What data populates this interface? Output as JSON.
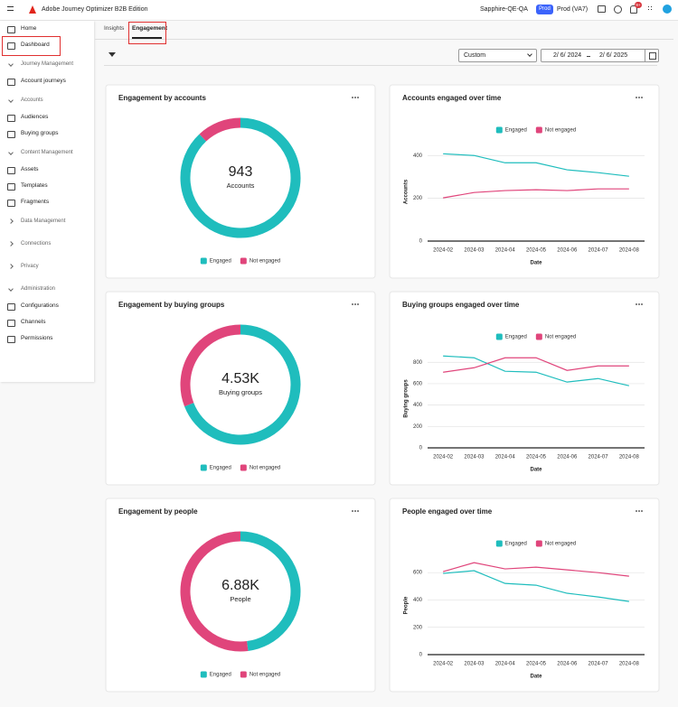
{
  "header": {
    "app_title": "Adobe Journey Optimizer B2B Edition",
    "org": "Sapphire-QE-QA",
    "env_badge": "Prod",
    "sandbox": "Prod (VA7)",
    "notification_count": "9+"
  },
  "nav": {
    "top": [
      "Home",
      "Dashboard"
    ],
    "sections": [
      {
        "title": "Journey Management",
        "items": [
          "Account journeys"
        ]
      },
      {
        "title": "Accounts",
        "items": [
          "Audiences",
          "Buying groups"
        ]
      },
      {
        "title": "Content Management",
        "items": [
          "Assets",
          "Templates",
          "Fragments"
        ]
      },
      {
        "title": "Data Management",
        "items": []
      },
      {
        "title": "Connections",
        "items": []
      },
      {
        "title": "Privacy",
        "items": []
      },
      {
        "title": "Administration",
        "items": [
          "Configurations",
          "Channels",
          "Permissions"
        ]
      }
    ]
  },
  "tabs": [
    "Insights",
    "Engagement"
  ],
  "toolbar": {
    "preset": "Custom",
    "start_date": "2/ 6/ 2024",
    "end_date": "2/ 6/ 2025"
  },
  "chart_data": [
    {
      "type": "donut",
      "title": "Engagement by accounts",
      "total_label": "943",
      "total_caption": "Accounts",
      "categories": [
        "Engaged",
        "Not engaged"
      ],
      "values": [
        830,
        113
      ],
      "colors": [
        "#1fbdbd",
        "#e0457b"
      ]
    },
    {
      "type": "line",
      "title": "Accounts engaged over time",
      "x": [
        "2024-02",
        "2024-03",
        "2024-04",
        "2024-05",
        "2024-06",
        "2024-07",
        "2024-08"
      ],
      "series": [
        {
          "name": "Engaged",
          "color": "#1fbdbd",
          "values": [
            408,
            400,
            366,
            366,
            333,
            320,
            303
          ]
        },
        {
          "name": "Not engaged",
          "color": "#e0457b",
          "values": [
            202,
            227,
            236,
            240,
            236,
            244,
            244
          ]
        }
      ],
      "xlabel": "Date",
      "ylabel": "Accounts",
      "ylim": [
        0,
        460
      ],
      "yticks": [
        0,
        200,
        400
      ],
      "grid": true
    },
    {
      "type": "donut",
      "title": "Engagement by buying groups",
      "total_label": "4.53K",
      "total_caption": "Buying groups",
      "categories": [
        "Engaged",
        "Not engaged"
      ],
      "values": [
        3130,
        1400
      ],
      "colors": [
        "#1fbdbd",
        "#e0457b"
      ]
    },
    {
      "type": "line",
      "title": "Buying groups engaged over time",
      "x": [
        "2024-02",
        "2024-03",
        "2024-04",
        "2024-05",
        "2024-06",
        "2024-07",
        "2024-08"
      ],
      "series": [
        {
          "name": "Engaged",
          "color": "#1fbdbd",
          "values": [
            859,
            842,
            716,
            707,
            615,
            648,
            581
          ]
        },
        {
          "name": "Not engaged",
          "color": "#e0457b",
          "values": [
            707,
            749,
            842,
            842,
            724,
            766,
            766
          ]
        }
      ],
      "xlabel": "Date",
      "ylabel": "Buying groups",
      "ylim": [
        0,
        920
      ],
      "yticks": [
        0,
        200,
        400,
        600,
        800
      ],
      "grid": true
    },
    {
      "type": "donut",
      "title": "Engagement by people",
      "total_label": "6.88K",
      "total_caption": "People",
      "categories": [
        "Engaged",
        "Not engaged"
      ],
      "values": [
        3300,
        3580
      ],
      "colors": [
        "#1fbdbd",
        "#e0457b"
      ]
    },
    {
      "type": "line",
      "title": "People engaged over time",
      "x": [
        "2024-02",
        "2024-03",
        "2024-04",
        "2024-05",
        "2024-06",
        "2024-07",
        "2024-08"
      ],
      "series": [
        {
          "name": "Engaged",
          "color": "#1fbdbd",
          "values": [
            594,
            614,
            521,
            508,
            449,
            422,
            389
          ]
        },
        {
          "name": "Not engaged",
          "color": "#e0457b",
          "values": [
            607,
            673,
            627,
            640,
            620,
            600,
            574
          ]
        }
      ],
      "xlabel": "Date",
      "ylabel": "People",
      "ylim": [
        0,
        720
      ],
      "yticks": [
        0,
        200,
        400,
        600
      ],
      "grid": true
    }
  ]
}
